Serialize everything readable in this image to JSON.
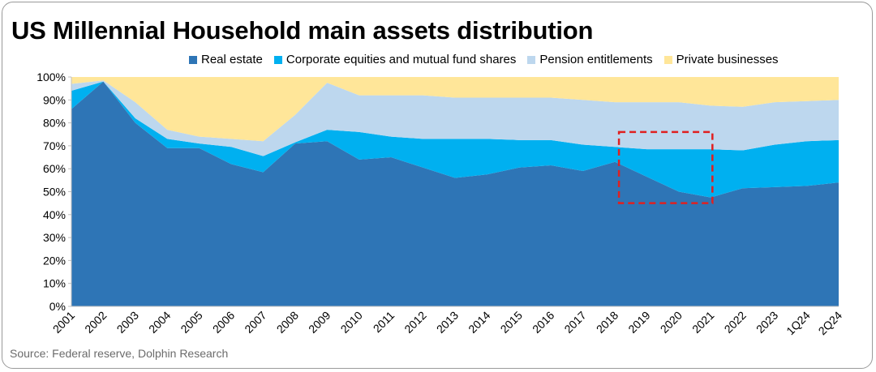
{
  "chart_data": {
    "type": "area",
    "stacked": true,
    "normalized": true,
    "title": "US Millennial Household main assets distribution",
    "categories": [
      "2001",
      "2002",
      "2003",
      "2004",
      "2005",
      "2006",
      "2007",
      "2008",
      "2009",
      "2010",
      "2011",
      "2012",
      "2013",
      "2014",
      "2015",
      "2016",
      "2017",
      "2018",
      "2019",
      "2020",
      "2021",
      "2022",
      "2023",
      "1Q24",
      "2Q24"
    ],
    "series": [
      {
        "name": "Real estate",
        "color": "#2E75B6",
        "values": [
          86,
          98,
          80,
          69,
          69,
          62,
          58.5,
          71,
          72,
          64,
          65,
          60.5,
          56,
          57.5,
          60.5,
          61.5,
          59,
          63,
          56.5,
          50,
          47.5,
          51.5,
          52,
          52.5,
          54
        ]
      },
      {
        "name": "Corporate equities and mutual fund shares",
        "color": "#00B0F0",
        "values": [
          8,
          0,
          2,
          4,
          2,
          7.5,
          7,
          0.5,
          5,
          12,
          9,
          12.5,
          17,
          15.5,
          12,
          11,
          11.5,
          6.5,
          12,
          18.5,
          21,
          16.5,
          18.5,
          19.5,
          18.5
        ]
      },
      {
        "name": "Pension entitlements",
        "color": "#BDD7EE",
        "values": [
          3,
          0.5,
          7,
          4,
          3,
          3.5,
          6.5,
          12,
          20.5,
          16,
          18,
          19,
          18,
          18,
          18.5,
          18.5,
          19.5,
          19.5,
          20.5,
          20.5,
          19,
          19,
          18.5,
          17.5,
          17.5
        ]
      },
      {
        "name": "Private businesses",
        "color": "#FFE699",
        "values": [
          3,
          1.5,
          11,
          23,
          26,
          27,
          28,
          16.5,
          2.5,
          8,
          8,
          8,
          9,
          9,
          9,
          9,
          10,
          11,
          11,
          11,
          12.5,
          13,
          11,
          10.5,
          10
        ]
      }
    ],
    "ylim": [
      0,
      100
    ],
    "yticks": [
      "0%",
      "10%",
      "20%",
      "30%",
      "40%",
      "50%",
      "60%",
      "70%",
      "80%",
      "90%",
      "100%"
    ],
    "legend_position": "top",
    "annotation": {
      "type": "dashed-box",
      "color": "#E02020",
      "x_range": [
        "2018",
        "2021"
      ],
      "y_range": [
        45,
        76
      ]
    }
  },
  "source": "Source:  Federal reserve,   Dolphin Research"
}
